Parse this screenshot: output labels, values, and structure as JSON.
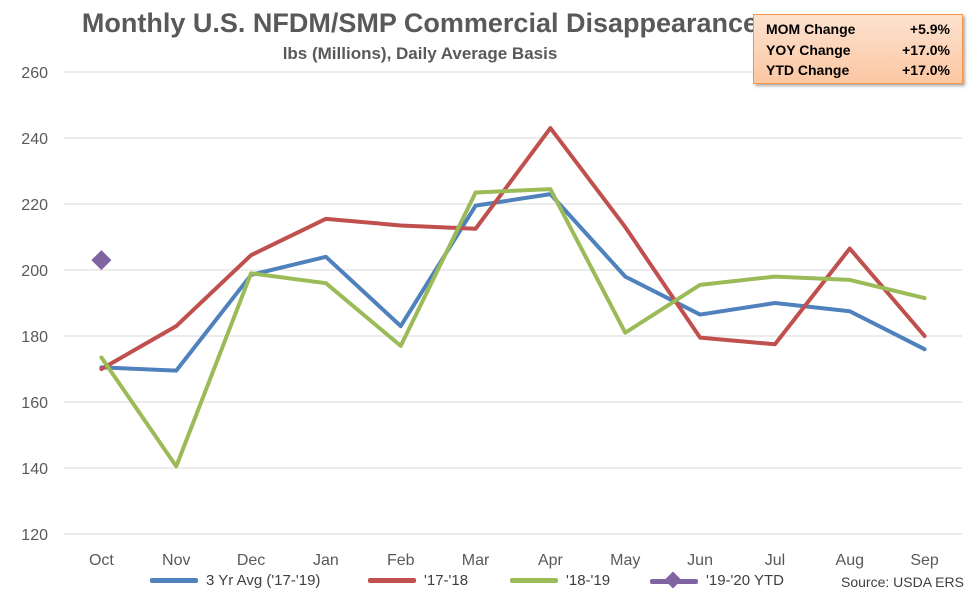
{
  "chart_data": {
    "type": "line",
    "title": "Monthly U.S. NFDM/SMP Commercial Disappearance",
    "subtitle": "lbs (Millions), Daily Average Basis",
    "categories": [
      "Oct",
      "Nov",
      "Dec",
      "Jan",
      "Feb",
      "Mar",
      "Apr",
      "May",
      "Jun",
      "Jul",
      "Aug",
      "Sep"
    ],
    "ylim": [
      120,
      260
    ],
    "yticks": [
      "120",
      "140",
      "160",
      "180",
      "200",
      "220",
      "240",
      "260"
    ],
    "grid": true,
    "legend_position": "bottom",
    "series": [
      {
        "name": "3 Yr Avg ('17-'19)",
        "color": "#4f81bd",
        "marker": "none",
        "values": [
          170.5,
          169.5,
          198.5,
          204.0,
          183.0,
          219.5,
          223.0,
          198.0,
          186.5,
          190.0,
          187.5,
          176.0
        ]
      },
      {
        "name": "'17-'18",
        "color": "#c0504d",
        "marker": "none",
        "values": [
          170.0,
          183.0,
          204.5,
          215.5,
          213.5,
          212.5,
          243.0,
          213.0,
          179.5,
          177.5,
          206.5,
          180.0
        ]
      },
      {
        "name": "'18-'19",
        "color": "#9bbb59",
        "marker": "none",
        "values": [
          173.5,
          140.5,
          199.0,
          196.0,
          177.0,
          223.5,
          224.5,
          181.0,
          195.5,
          198.0,
          197.0,
          191.5
        ]
      },
      {
        "name": "'19-'20 YTD",
        "color": "#8064a2",
        "marker": "diamond",
        "values": [
          203.0,
          null,
          null,
          null,
          null,
          null,
          null,
          null,
          null,
          null,
          null,
          null
        ]
      }
    ]
  },
  "stats": [
    {
      "label": "MOM Change",
      "value": "+5.9%"
    },
    {
      "label": "YOY Change",
      "value": "+17.0%"
    },
    {
      "label": "YTD Change",
      "value": "+17.0%"
    }
  ],
  "source": "Source: USDA ERS"
}
